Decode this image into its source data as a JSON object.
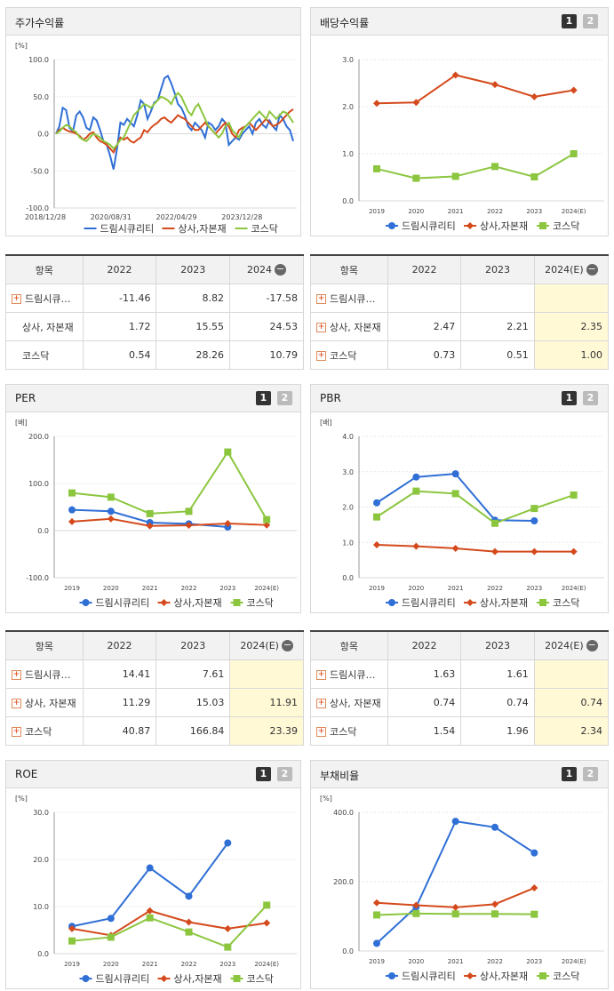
{
  "panels": {
    "stock_return": {
      "title": "주가수익률"
    },
    "dividend": {
      "title": "배당수익률",
      "btn1": "1",
      "btn2": "2"
    },
    "per": {
      "title": "PER",
      "btn1": "1",
      "btn2": "2"
    },
    "pbr": {
      "title": "PBR",
      "btn1": "1",
      "btn2": "2"
    },
    "roe": {
      "title": "ROE",
      "btn1": "1",
      "btn2": "2"
    },
    "debt": {
      "title": "부채비율",
      "btn1": "1",
      "btn2": "2"
    }
  },
  "colors": {
    "company": "#2f6fd6",
    "sector": "#d44a1c",
    "kosdaq": "#8cc63f"
  },
  "chart_data": [
    {
      "id": "stock_return",
      "type": "line",
      "unit": "[%]",
      "ylim": [
        -100,
        100
      ],
      "yticks": [
        "100.0",
        "50.0",
        "0.0",
        "-50.0",
        "-100.0"
      ],
      "xtick_labels": [
        "2018/12/28",
        "2020/08/31",
        "2022/04/29",
        "2023/12/28"
      ],
      "grid": true,
      "legend_position": "bottom",
      "series": [
        {
          "name": "드림시큐리티",
          "values": [
            0,
            10,
            35,
            32,
            8,
            3,
            25,
            30,
            22,
            8,
            5,
            22,
            18,
            5,
            -10,
            -15,
            -30,
            -48,
            -20,
            15,
            12,
            20,
            15,
            10,
            25,
            45,
            40,
            20,
            30,
            42,
            45,
            60,
            75,
            78,
            68,
            55,
            40,
            35,
            25,
            10,
            5,
            15,
            10,
            5,
            -5,
            15,
            12,
            5,
            10,
            20,
            15,
            -15,
            -10,
            -5,
            -8,
            0,
            5,
            10,
            0,
            15,
            20,
            12,
            8,
            18,
            10,
            5,
            25,
            20,
            10,
            5,
            -10
          ]
        },
        {
          "name": "상사,자본재",
          "values": [
            0,
            5,
            8,
            5,
            3,
            2,
            0,
            -3,
            -8,
            -5,
            0,
            2,
            -5,
            -10,
            -12,
            -15,
            -20,
            -25,
            -15,
            -5,
            -8,
            -5,
            -10,
            -12,
            -8,
            -5,
            5,
            2,
            8,
            12,
            15,
            20,
            22,
            18,
            15,
            20,
            25,
            22,
            20,
            15,
            10,
            5,
            5,
            10,
            15,
            10,
            5,
            0,
            5,
            10,
            15,
            10,
            0,
            -5,
            5,
            8,
            10,
            15,
            10,
            5,
            10,
            15,
            20,
            15,
            10,
            12,
            15,
            20,
            25,
            30,
            33
          ]
        },
        {
          "name": "코스닥",
          "values": [
            0,
            3,
            8,
            12,
            10,
            5,
            2,
            -5,
            -8,
            -10,
            -5,
            0,
            -2,
            -5,
            -10,
            -12,
            -15,
            -20,
            -15,
            -8,
            -5,
            5,
            15,
            25,
            30,
            35,
            40,
            38,
            35,
            40,
            45,
            50,
            48,
            45,
            40,
            50,
            55,
            50,
            40,
            30,
            25,
            35,
            40,
            30,
            20,
            10,
            5,
            0,
            -5,
            0,
            10,
            15,
            5,
            0,
            -5,
            5,
            10,
            15,
            20,
            25,
            30,
            25,
            20,
            30,
            25,
            20,
            25,
            30,
            28,
            22,
            15
          ]
        }
      ]
    },
    {
      "id": "dividend",
      "type": "line",
      "unit": "",
      "ylim": [
        0,
        3
      ],
      "yticks": [
        "3.0",
        "2.0",
        "1.0",
        "0.0"
      ],
      "categories": [
        "2019",
        "2020",
        "2021",
        "2022",
        "2023",
        "2024(E)"
      ],
      "legend_position": "bottom",
      "series": [
        {
          "name": "드림시큐리티",
          "values": [
            null,
            null,
            null,
            null,
            null,
            null
          ]
        },
        {
          "name": "상사,자본재",
          "values": [
            2.07,
            2.09,
            2.67,
            2.47,
            2.21,
            2.35
          ]
        },
        {
          "name": "코스닥",
          "values": [
            0.68,
            0.48,
            0.52,
            0.73,
            0.51,
            1.0
          ]
        }
      ]
    },
    {
      "id": "per",
      "type": "line",
      "unit": "[배]",
      "ylim": [
        -100,
        200
      ],
      "yticks": [
        "200.0",
        "100.0",
        "0.0",
        "-100.0"
      ],
      "categories": [
        "2019",
        "2020",
        "2021",
        "2022",
        "2023",
        "2024(E)"
      ],
      "legend_position": "bottom",
      "series": [
        {
          "name": "드림시큐리티",
          "values": [
            44,
            41,
            17,
            14.41,
            7.61,
            null
          ]
        },
        {
          "name": "상사,자본재",
          "values": [
            19,
            25,
            10,
            11.29,
            15.03,
            11.91
          ]
        },
        {
          "name": "코스닥",
          "values": [
            80,
            71,
            36,
            40.87,
            166.84,
            23.39
          ]
        }
      ]
    },
    {
      "id": "pbr",
      "type": "line",
      "unit": "[배]",
      "ylim": [
        0,
        4
      ],
      "yticks": [
        "4.0",
        "3.0",
        "2.0",
        "1.0",
        "0.0"
      ],
      "categories": [
        "2019",
        "2020",
        "2021",
        "2022",
        "2023",
        "2024(E)"
      ],
      "legend_position": "bottom",
      "series": [
        {
          "name": "드림시큐리티",
          "values": [
            2.12,
            2.85,
            2.94,
            1.63,
            1.61,
            null
          ]
        },
        {
          "name": "상사,자본재",
          "values": [
            0.93,
            0.89,
            0.83,
            0.74,
            0.74,
            0.74
          ]
        },
        {
          "name": "코스닥",
          "values": [
            1.72,
            2.45,
            2.38,
            1.54,
            1.96,
            2.34
          ]
        }
      ]
    },
    {
      "id": "roe",
      "type": "line",
      "unit": "[%]",
      "ylim": [
        0,
        30
      ],
      "yticks": [
        "30.0",
        "20.0",
        "10.0",
        "0.0"
      ],
      "categories": [
        "2019",
        "2020",
        "2021",
        "2022",
        "2023",
        "2024(E)"
      ],
      "legend_position": "bottom",
      "series": [
        {
          "name": "드림시큐리티",
          "values": [
            5.8,
            7.5,
            18.2,
            12.2,
            23.5,
            null
          ]
        },
        {
          "name": "상사,자본재",
          "values": [
            5.3,
            3.9,
            9.1,
            6.7,
            5.3,
            6.5
          ]
        },
        {
          "name": "코스닥",
          "values": [
            2.7,
            3.5,
            7.6,
            4.6,
            1.4,
            10.3
          ]
        }
      ]
    },
    {
      "id": "debt",
      "type": "line",
      "unit": "[%]",
      "ylim": [
        0,
        400
      ],
      "yticks": [
        "400.0",
        "200.0",
        "0.0"
      ],
      "categories": [
        "2019",
        "2020",
        "2021",
        "2022",
        "2023",
        "2024(E)"
      ],
      "legend_position": "bottom",
      "series": [
        {
          "name": "드림시큐리티",
          "values": [
            22,
            127,
            374,
            357,
            283,
            null
          ]
        },
        {
          "name": "상사,자본재",
          "values": [
            139,
            132,
            126,
            135,
            182,
            null
          ]
        },
        {
          "name": "코스닥",
          "values": [
            104,
            108,
            107,
            107,
            106,
            null
          ]
        }
      ]
    }
  ],
  "tables": {
    "stock_return": {
      "header": [
        "항목",
        "2022",
        "2023",
        "2024"
      ],
      "rows": [
        {
          "name": "드림시큐…",
          "plus": true,
          "values": [
            "-11.46",
            "8.82",
            "-17.58"
          ]
        },
        {
          "name": "상사, 자본재",
          "plus": false,
          "values": [
            "1.72",
            "15.55",
            "24.53"
          ]
        },
        {
          "name": "코스닥",
          "plus": false,
          "values": [
            "0.54",
            "28.26",
            "10.79"
          ]
        }
      ]
    },
    "dividend": {
      "header": [
        "항목",
        "2022",
        "2023",
        "2024(E)"
      ],
      "rows": [
        {
          "name": "드림시큐…",
          "plus": true,
          "values": [
            "",
            "",
            ""
          ]
        },
        {
          "name": "상사, 자본재",
          "plus": true,
          "values": [
            "2.47",
            "2.21",
            "2.35"
          ]
        },
        {
          "name": "코스닥",
          "plus": true,
          "values": [
            "0.73",
            "0.51",
            "1.00"
          ]
        }
      ]
    },
    "per": {
      "header": [
        "항목",
        "2022",
        "2023",
        "2024(E)"
      ],
      "rows": [
        {
          "name": "드림시큐…",
          "plus": true,
          "values": [
            "14.41",
            "7.61",
            ""
          ]
        },
        {
          "name": "상사, 자본재",
          "plus": true,
          "values": [
            "11.29",
            "15.03",
            "11.91"
          ]
        },
        {
          "name": "코스닥",
          "plus": true,
          "values": [
            "40.87",
            "166.84",
            "23.39"
          ]
        }
      ]
    },
    "pbr": {
      "header": [
        "항목",
        "2022",
        "2023",
        "2024(E)"
      ],
      "rows": [
        {
          "name": "드림시큐…",
          "plus": true,
          "values": [
            "1.63",
            "1.61",
            ""
          ]
        },
        {
          "name": "상사, 자본재",
          "plus": true,
          "values": [
            "0.74",
            "0.74",
            "0.74"
          ]
        },
        {
          "name": "코스닥",
          "plus": true,
          "values": [
            "1.54",
            "1.96",
            "2.34"
          ]
        }
      ]
    }
  }
}
